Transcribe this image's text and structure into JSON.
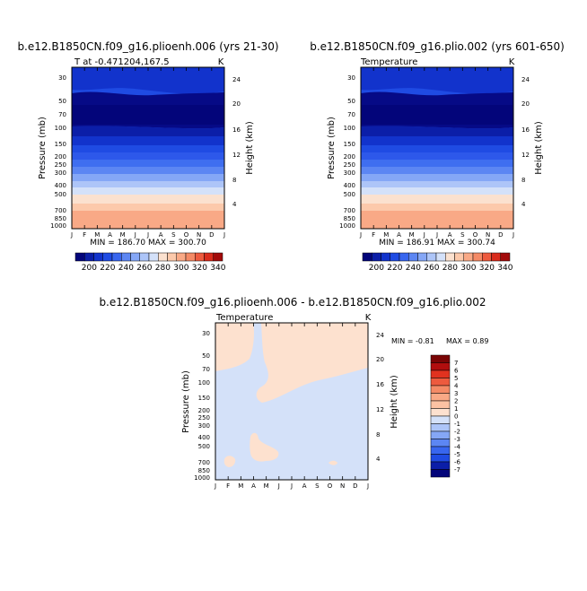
{
  "chart_data": [
    {
      "type": "heatmap",
      "title": "b.e12.B1850CN.f09_g16.plioenh.006 (yrs 21-30)",
      "subtitle_left": "T at -0.471204,167.5",
      "subtitle_right": "K",
      "ylabel": "Pressure (mb)",
      "ylabel_right": "Height (km)",
      "x": [
        "J",
        "F",
        "M",
        "A",
        "M",
        "J",
        "J",
        "A",
        "S",
        "O",
        "N",
        "D",
        "J"
      ],
      "pressure_ticks": [
        "30",
        "50",
        "70",
        "100",
        "150",
        "200",
        "250",
        "300",
        "400",
        "500",
        "700",
        "850",
        "1000"
      ],
      "height_ticks": [
        "24",
        "20",
        "16",
        "12",
        "8",
        "4"
      ],
      "stats": "MIN = 186.70 MAX = 300.70",
      "colorbar_labels": [
        "200",
        "220",
        "240",
        "260",
        "280",
        "300",
        "320",
        "340"
      ]
    },
    {
      "type": "heatmap",
      "title": "b.e12.B1850CN.f09_g16.plio.002 (yrs 601-650)",
      "subtitle_left": "Temperature",
      "subtitle_right": "K",
      "ylabel": "Pressure (mb)",
      "ylabel_right": "Height (km)",
      "x": [
        "J",
        "F",
        "M",
        "A",
        "M",
        "J",
        "J",
        "A",
        "S",
        "O",
        "N",
        "D",
        "J"
      ],
      "pressure_ticks": [
        "30",
        "50",
        "70",
        "100",
        "150",
        "200",
        "250",
        "300",
        "400",
        "500",
        "700",
        "850",
        "1000"
      ],
      "height_ticks": [
        "24",
        "20",
        "16",
        "12",
        "8",
        "4"
      ],
      "stats": "MIN = 186.91 MAX = 300.74",
      "colorbar_labels": [
        "200",
        "220",
        "240",
        "260",
        "280",
        "300",
        "320",
        "340"
      ]
    },
    {
      "type": "heatmap",
      "title": "b.e12.B1850CN.f09_g16.plioenh.006 - b.e12.B1850CN.f09_g16.plio.002",
      "subtitle_left": "Temperature",
      "subtitle_right": "K",
      "ylabel": "Pressure (mb)",
      "ylabel_right": "Height (km)",
      "x": [
        "J",
        "F",
        "M",
        "A",
        "M",
        "J",
        "J",
        "A",
        "S",
        "O",
        "N",
        "D",
        "J"
      ],
      "pressure_ticks": [
        "30",
        "50",
        "70",
        "100",
        "150",
        "200",
        "250",
        "300",
        "400",
        "500",
        "700",
        "850",
        "1000"
      ],
      "height_ticks": [
        "24",
        "20",
        "16",
        "12",
        "8",
        "4"
      ],
      "stats_min": "MIN = -0.81",
      "stats_max": "MAX = 0.89",
      "colorbar_labels": [
        "7",
        "6",
        "5",
        "4",
        "3",
        "2",
        "1",
        "0",
        "-1",
        "-2",
        "-3",
        "-4",
        "-5",
        "-6",
        "-7"
      ]
    }
  ],
  "colors": {
    "scale_blue_red": [
      "#03057a",
      "#0b1ea8",
      "#1233cc",
      "#1f4be3",
      "#3866ef",
      "#5c86f3",
      "#85a7f6",
      "#adc5f8",
      "#d4e1f9",
      "#fbe1cf",
      "#fcc9ab",
      "#f9a986",
      "#f48a66",
      "#ed5a3e",
      "#d92b1c",
      "#a30a0a"
    ],
    "diff_scale": [
      "#03057a",
      "#0b1ea8",
      "#1f4be3",
      "#3866ef",
      "#5c86f3",
      "#85a7f6",
      "#adc5f8",
      "#d4e1f9",
      "#fde1cf",
      "#fcc2a3",
      "#f9a986",
      "#f48a66",
      "#ed5a3e",
      "#e1321f",
      "#b10e0e",
      "#7a0505"
    ]
  }
}
